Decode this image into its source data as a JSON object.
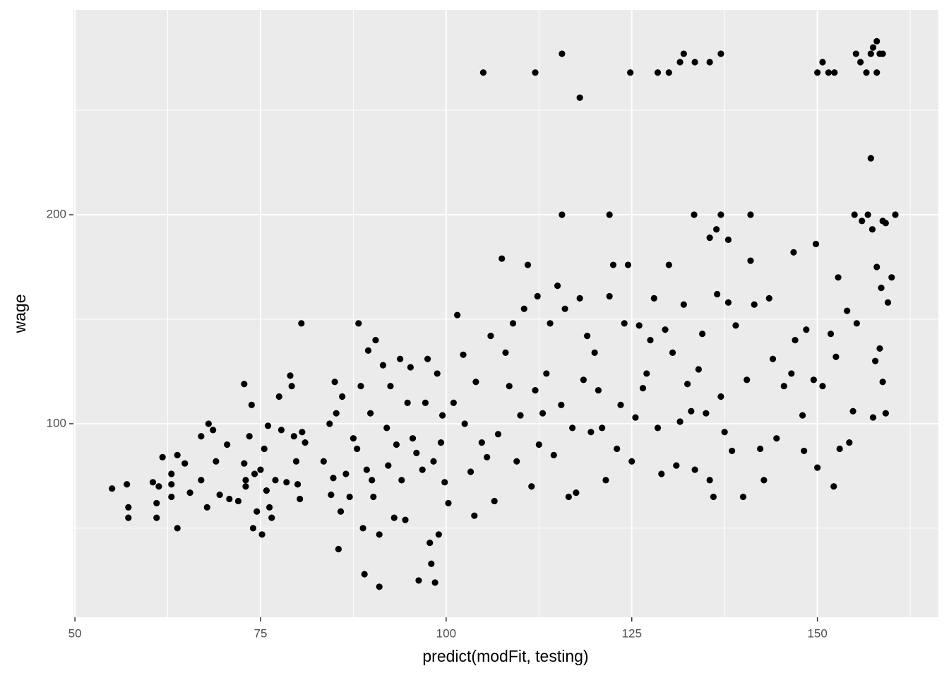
{
  "chart_data": {
    "type": "scatter",
    "x_label": "predict(modFit, testing)",
    "y_label": "wage",
    "xlim": [
      49.8,
      166.3
    ],
    "ylim": [
      7.4,
      298
    ],
    "xticks": [
      50,
      75,
      100,
      125,
      150
    ],
    "yticks": [
      100,
      200
    ],
    "xminor": [
      62.5,
      87.5,
      112.5,
      137.5,
      162.5
    ],
    "yminor": [
      50,
      150,
      250
    ],
    "grid": true,
    "color": "#000000",
    "x": [
      105,
      112,
      115.6,
      118,
      124.8,
      128.5,
      130,
      131.5,
      132,
      133.5,
      135.5,
      137,
      150,
      150.7,
      151.5,
      152.3,
      155.2,
      155.8,
      156.6,
      157.2,
      157.5,
      158,
      158.4,
      158.8,
      158,
      157.2,
      115.6,
      122,
      133.4,
      137,
      141,
      155,
      156,
      156.8,
      157.4,
      158.8,
      159.2,
      160.5,
      149.8,
      135.5,
      136.4,
      138,
      55,
      57,
      57.2,
      57.2,
      60.5,
      61,
      61,
      61.3,
      61.8,
      63,
      63,
      63,
      63.8,
      63.8,
      64.8,
      65.5,
      67,
      67,
      67.8,
      68,
      68.6,
      69,
      69.5,
      70.5,
      70.8,
      72,
      72.8,
      72.8,
      73,
      73,
      73.5,
      73.8,
      74,
      74.2,
      74.5,
      75,
      75.2,
      75.5,
      75.8,
      76,
      76.2,
      76.5,
      77,
      77.5,
      77.8,
      78.5,
      79,
      79.2,
      79.5,
      79.8,
      80,
      80.3,
      80.5,
      80.6,
      81,
      83.5,
      84.3,
      84.5,
      84.8,
      85,
      85.2,
      85.5,
      85.8,
      86,
      86.5,
      87,
      87.5,
      88,
      88.2,
      88.5,
      88.8,
      89,
      89.3,
      89.5,
      89.8,
      90,
      90.2,
      90.5,
      91,
      91,
      91.5,
      92,
      92.2,
      92.5,
      93,
      93.3,
      93.8,
      94,
      94.5,
      94.8,
      95.2,
      95.5,
      96,
      96.3,
      96.8,
      97.2,
      97.5,
      97.8,
      98,
      98.3,
      98.5,
      98.8,
      99,
      99.3,
      99.5,
      99.8,
      100.3,
      101,
      101.5,
      102.3,
      102.5,
      103.3,
      103.8,
      104,
      104.8,
      105.5,
      106,
      106.5,
      107,
      107.5,
      108,
      108.5,
      109,
      109.5,
      110,
      110.5,
      111,
      111.5,
      112,
      112.3,
      112.5,
      113,
      113.5,
      114,
      114.5,
      115,
      115.5,
      116,
      116.5,
      117,
      117.5,
      118,
      118.5,
      119,
      119.5,
      120,
      120.5,
      121,
      121.5,
      122,
      122.5,
      123,
      123.5,
      124,
      124.5,
      125,
      125.5,
      126,
      126.5,
      127,
      127.5,
      128,
      128.5,
      129,
      129.5,
      130,
      130.5,
      131,
      131.5,
      132,
      132.5,
      133,
      133.5,
      134,
      134.5,
      135,
      135.5,
      136,
      136.5,
      137,
      137.5,
      138,
      138.5,
      139,
      140,
      140.5,
      141,
      141.5,
      142.3,
      142.8,
      143.5,
      144,
      144.5,
      145.5,
      146.5,
      146.8,
      147,
      148,
      148.2,
      148.5,
      149.5,
      150,
      150.7,
      151.8,
      152.2,
      152.5,
      152.8,
      153,
      154,
      154.3,
      154.8,
      155.3,
      157.5,
      157.8,
      158.4,
      158.6,
      158.8,
      159.2,
      159.5,
      160,
      158
    ],
    "values": [
      268,
      268,
      277,
      256,
      268,
      268,
      268,
      273,
      277,
      273,
      273,
      277,
      268,
      273,
      268,
      268,
      277,
      273,
      268,
      277,
      280,
      283,
      277,
      277,
      268,
      227,
      200,
      200,
      200,
      200,
      200,
      200,
      197,
      200,
      193,
      197,
      196,
      200,
      186,
      189,
      193,
      188,
      69,
      71,
      60,
      55,
      72,
      62,
      55,
      70,
      84,
      76,
      71,
      65,
      85,
      50,
      81,
      67,
      94,
      73,
      60,
      100,
      97,
      82,
      66,
      90,
      64,
      63,
      119,
      81,
      73,
      70,
      94,
      109,
      50,
      76,
      58,
      78,
      47,
      88,
      68,
      99,
      60,
      55,
      73,
      113,
      97,
      72,
      123,
      118,
      94,
      82,
      71,
      64,
      148,
      96,
      91,
      82,
      100,
      66,
      74,
      120,
      105,
      40,
      58,
      113,
      76,
      65,
      93,
      88,
      148,
      118,
      50,
      28,
      78,
      135,
      105,
      73,
      65,
      140,
      47,
      22,
      128,
      98,
      80,
      118,
      55,
      90,
      131,
      73,
      54,
      110,
      127,
      93,
      86,
      25,
      78,
      110,
      131,
      43,
      33,
      82,
      24,
      124,
      47,
      91,
      104,
      72,
      62,
      110,
      152,
      133,
      100,
      77,
      56,
      120,
      91,
      84,
      142,
      63,
      95,
      179,
      134,
      118,
      148,
      82,
      104,
      155,
      176,
      70,
      116,
      161,
      90,
      105,
      124,
      148,
      85,
      166,
      109,
      155,
      65,
      98,
      67,
      160,
      121,
      142,
      96,
      134,
      116,
      98,
      73,
      161,
      176,
      88,
      109,
      148,
      176,
      82,
      103,
      147,
      117,
      124,
      140,
      160,
      98,
      76,
      145,
      176,
      134,
      80,
      101,
      157,
      119,
      106,
      78,
      126,
      143,
      105,
      73,
      65,
      162,
      113,
      96,
      158,
      87,
      147,
      65,
      121,
      178,
      157,
      88,
      73,
      160,
      131,
      93,
      118,
      124,
      182,
      140,
      104,
      87,
      145,
      121,
      79,
      118,
      143,
      70,
      132,
      170,
      88,
      154,
      91,
      106,
      148,
      103,
      130,
      136,
      165,
      120,
      105,
      158,
      170,
      175
    ]
  }
}
